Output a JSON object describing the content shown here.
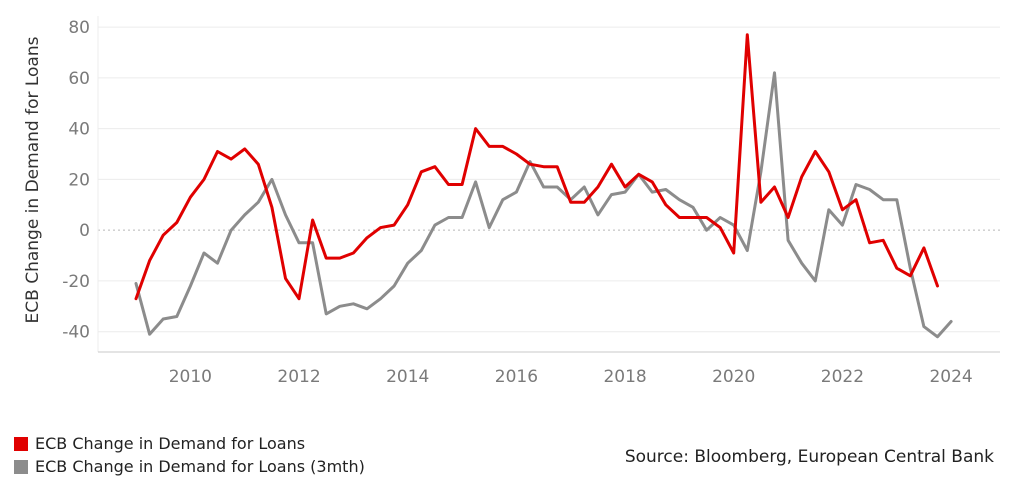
{
  "chart_data": {
    "type": "line",
    "ylabel": "ECB Change in Demand for Loans",
    "xlim": [
      2008.3,
      2024.9
    ],
    "ylim": [
      -48,
      82
    ],
    "yticks": [
      -40,
      -20,
      0,
      20,
      40,
      60,
      80
    ],
    "xticks": [
      2010,
      2012,
      2014,
      2016,
      2018,
      2020,
      2022,
      2024
    ],
    "grid": true,
    "zero_line": "dotted",
    "legend_position": "bottom-left",
    "series": [
      {
        "name": "ECB Change in Demand for Loans",
        "color": "#e00000",
        "x": [
          2009.0,
          2009.25,
          2009.5,
          2009.75,
          2010.0,
          2010.25,
          2010.5,
          2010.75,
          2011.0,
          2011.25,
          2011.5,
          2011.75,
          2012.0,
          2012.25,
          2012.5,
          2012.75,
          2013.0,
          2013.25,
          2013.5,
          2013.75,
          2014.0,
          2014.25,
          2014.5,
          2014.75,
          2015.0,
          2015.25,
          2015.5,
          2015.75,
          2016.0,
          2016.25,
          2016.5,
          2016.75,
          2017.0,
          2017.25,
          2017.5,
          2017.75,
          2018.0,
          2018.25,
          2018.5,
          2018.75,
          2019.0,
          2019.25,
          2019.5,
          2019.75,
          2020.0,
          2020.25,
          2020.5,
          2020.75,
          2021.0,
          2021.25,
          2021.5,
          2021.75,
          2022.0,
          2022.25,
          2022.5,
          2022.75,
          2023.0,
          2023.25,
          2023.5,
          2023.75
        ],
        "y": [
          -27,
          -12,
          -2,
          3,
          13,
          20,
          31,
          28,
          32,
          26,
          9,
          -19,
          -27,
          4,
          -11,
          -11,
          -9,
          -3,
          1,
          2,
          10,
          23,
          25,
          18,
          18,
          40,
          33,
          33,
          30,
          26,
          25,
          25,
          11,
          11,
          17,
          26,
          17,
          22,
          19,
          10,
          5,
          5,
          5,
          1,
          -9,
          77,
          11,
          17,
          5,
          21,
          31,
          23,
          8,
          12,
          -5,
          -4,
          -15,
          -18,
          -7,
          -22
        ]
      },
      {
        "name": "ECB Change in Demand for Loans (3mth)",
        "color": "#8c8c8c",
        "x": [
          2009.0,
          2009.25,
          2009.5,
          2009.75,
          2010.0,
          2010.25,
          2010.5,
          2010.75,
          2011.0,
          2011.25,
          2011.5,
          2011.75,
          2012.0,
          2012.25,
          2012.5,
          2012.75,
          2013.0,
          2013.25,
          2013.5,
          2013.75,
          2014.0,
          2014.25,
          2014.5,
          2014.75,
          2015.0,
          2015.25,
          2015.5,
          2015.75,
          2016.0,
          2016.25,
          2016.5,
          2016.75,
          2017.0,
          2017.25,
          2017.5,
          2017.75,
          2018.0,
          2018.25,
          2018.5,
          2018.75,
          2019.0,
          2019.25,
          2019.5,
          2019.75,
          2020.0,
          2020.25,
          2020.5,
          2020.75,
          2021.0,
          2021.25,
          2021.5,
          2021.75,
          2022.0,
          2022.25,
          2022.5,
          2022.75,
          2023.0,
          2023.25,
          2023.5,
          2023.75,
          2024.0
        ],
        "y": [
          -21,
          -41,
          -35,
          -34,
          -22,
          -9,
          -13,
          0,
          6,
          11,
          20,
          6,
          -5,
          -5,
          -33,
          -30,
          -29,
          -31,
          -27,
          -22,
          -13,
          -8,
          2,
          5,
          5,
          19,
          1,
          12,
          15,
          27,
          17,
          17,
          12,
          17,
          6,
          14,
          15,
          22,
          15,
          16,
          12,
          9,
          0,
          5,
          2,
          -8,
          23,
          62,
          -4,
          -13,
          -20,
          8,
          2,
          18,
          16,
          12,
          12,
          -15,
          -38,
          -42,
          -36
        ]
      }
    ],
    "source": "Source: Bloomberg, European Central Bank"
  }
}
